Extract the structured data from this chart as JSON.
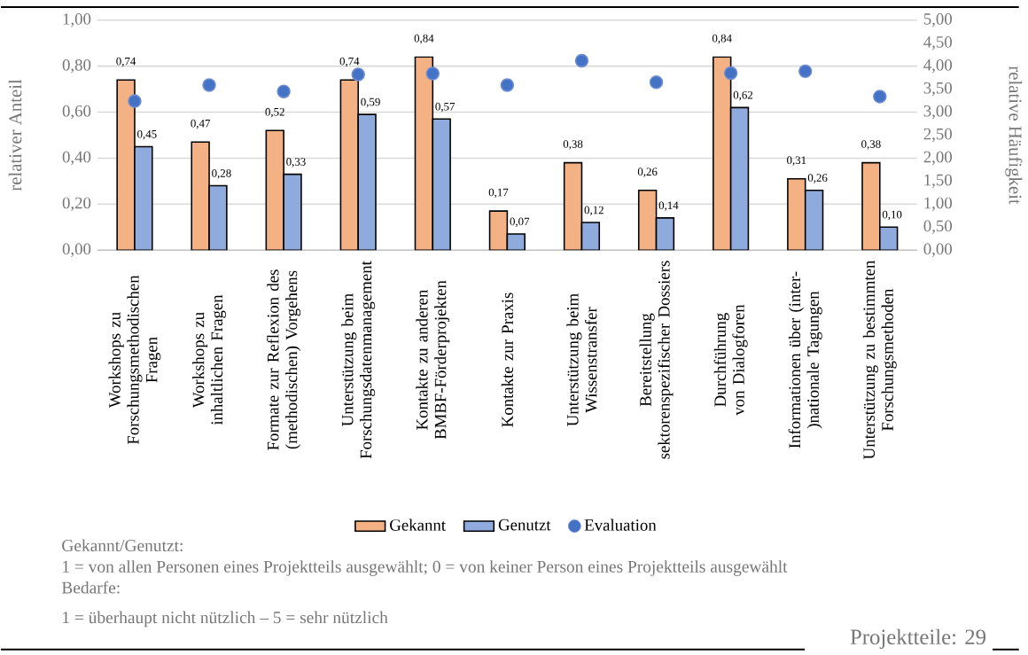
{
  "chart_data": {
    "type": "bar",
    "categories": [
      "Workshops zu Forschungsmethodischen Fragen",
      "Workshops zu inhaltlichen Fragen",
      "Formate zur Reflexion des (methodischen) Vorgehens",
      "Unterstützung beim Forschungsdatenmanagement",
      "Kontakte zu anderen BMBF-Förderprojekten",
      "Kontakte zur Praxis",
      "Unterstützung beim Wissenstransfer",
      "Bereitstellung sektorenspezifischer Dossiers",
      "Durchführung von Dialogforen",
      "Informationen über (inter-)nationale Tagungen",
      "Unterstützung zu bestimmten Forschungsmethoden"
    ],
    "series": [
      {
        "name": "Gekannt",
        "color": "#f4b183",
        "values": [
          0.74,
          0.47,
          0.52,
          0.74,
          0.84,
          0.17,
          0.38,
          0.26,
          0.84,
          0.31,
          0.38
        ],
        "value_labels": [
          "0,74",
          "0,47",
          "0,52",
          "0,74",
          "0,84",
          "0,17",
          "0,38",
          "0,26",
          "0,84",
          "0,31",
          "0,38"
        ]
      },
      {
        "name": "Genutzt",
        "color": "#8faadc",
        "values": [
          0.45,
          0.28,
          0.33,
          0.59,
          0.57,
          0.07,
          0.12,
          0.14,
          0.62,
          0.26,
          0.1
        ],
        "value_labels": [
          "0,45",
          "0,28",
          "0,33",
          "0,59",
          "0,57",
          "0,07",
          "0,12",
          "0,14",
          "0,62",
          "0,26",
          "0,10"
        ]
      },
      {
        "name": "Evaluation",
        "type": "scatter",
        "axis": "y2",
        "color": "#4472c4",
        "values": [
          3.24,
          3.59,
          3.45,
          3.82,
          3.84,
          3.59,
          4.12,
          3.65,
          3.85,
          3.89,
          3.34
        ]
      }
    ],
    "ylabel": "relativer Anteil",
    "y2label": "relative Häufigkeit",
    "ylim": [
      0,
      1
    ],
    "yticks": [
      {
        "value": 0,
        "label": "0,00"
      },
      {
        "value": 0.2,
        "label": "0,20"
      },
      {
        "value": 0.4,
        "label": "0,40"
      },
      {
        "value": 0.6,
        "label": "0,60"
      },
      {
        "value": 0.8,
        "label": "0,80"
      },
      {
        "value": 1,
        "label": "1,00"
      }
    ],
    "y2lim": [
      0,
      5
    ],
    "y2ticks": [
      {
        "value": 0,
        "label": "0,00"
      },
      {
        "value": 0.5,
        "label": "0,50"
      },
      {
        "value": 1,
        "label": "1,00"
      },
      {
        "value": 1.5,
        "label": "1,50"
      },
      {
        "value": 2,
        "label": "2,00"
      },
      {
        "value": 2.5,
        "label": "2,50"
      },
      {
        "value": 3,
        "label": "3,00"
      },
      {
        "value": 3.5,
        "label": "3,50"
      },
      {
        "value": 4,
        "label": "4,00"
      },
      {
        "value": 4.5,
        "label": "4,50"
      },
      {
        "value": 5,
        "label": "5,00"
      }
    ],
    "grid": "y",
    "legend": "bottom",
    "annotations": [
      "Gekannt/Genutzt:",
      "1 = von allen Personen eines Projektteils ausgewählt; 0 = von keiner Person eines Projektteils ausgewählt",
      "Bedarfe:",
      "1 = überhaupt nicht nützlich – 5 = sehr nützlich",
      "Projektteile: 29"
    ]
  }
}
